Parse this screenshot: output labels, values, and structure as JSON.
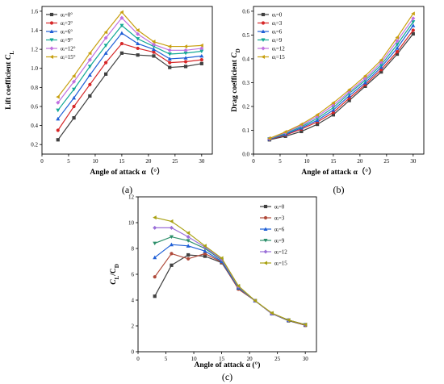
{
  "chart_data": [
    {
      "type": "line",
      "panel_label": "(a)",
      "xlabel": "Angle of attack α（°）",
      "ylabel_main": "Lift coefficient ",
      "ylabel_italic": "C",
      "ylabel_sub": "L",
      "xlim": [
        0,
        32
      ],
      "ylim": [
        0.1,
        1.65
      ],
      "xticks": [
        "0",
        "5",
        "10",
        "15",
        "20",
        "25",
        "30"
      ],
      "yticks": [
        "0.2",
        "0.4",
        "0.6",
        "0.8",
        "1.0",
        "1.2",
        "1.4",
        "1.6"
      ],
      "legend_placement": "top-left",
      "x": [
        3,
        6,
        9,
        12,
        15,
        18,
        21,
        24,
        27,
        30
      ],
      "series": [
        {
          "name": "αᵢ=0°",
          "color": "#404040",
          "marker": "square",
          "values": [
            0.25,
            0.48,
            0.71,
            0.94,
            1.16,
            1.14,
            1.13,
            1.01,
            1.02,
            1.05
          ]
        },
        {
          "name": "αᵢ=3°",
          "color": "#d62728",
          "marker": "circle",
          "values": [
            0.35,
            0.6,
            0.83,
            1.06,
            1.26,
            1.21,
            1.17,
            1.06,
            1.07,
            1.09
          ]
        },
        {
          "name": "αᵢ=6°",
          "color": "#1f5fd6",
          "marker": "triangle-up",
          "values": [
            0.47,
            0.69,
            0.93,
            1.16,
            1.37,
            1.26,
            1.2,
            1.1,
            1.11,
            1.13
          ]
        },
        {
          "name": "αᵢ=9°",
          "color": "#12a896",
          "marker": "triangle-down",
          "values": [
            0.56,
            0.78,
            1.02,
            1.24,
            1.45,
            1.31,
            1.23,
            1.15,
            1.16,
            1.18
          ]
        },
        {
          "name": "αᵢ=12°",
          "color": "#c070e0",
          "marker": "diamond",
          "values": [
            0.64,
            0.86,
            1.09,
            1.32,
            1.53,
            1.36,
            1.25,
            1.19,
            1.19,
            1.21
          ]
        },
        {
          "name": "αᵢ=15°",
          "color": "#c8a010",
          "marker": "triangle-left",
          "values": [
            0.7,
            0.92,
            1.16,
            1.38,
            1.59,
            1.4,
            1.28,
            1.23,
            1.23,
            1.24
          ]
        }
      ]
    },
    {
      "type": "line",
      "panel_label": "(b)",
      "xlabel": "Angle of attack α（°）",
      "ylabel_main": "Drag coefficient ",
      "ylabel_italic": "C",
      "ylabel_sub": "D",
      "xlim": [
        0,
        32
      ],
      "ylim": [
        0.0,
        0.62
      ],
      "xticks": [
        "0",
        "5",
        "10",
        "15",
        "20",
        "25",
        "30"
      ],
      "yticks": [
        "0.0",
        "0.1",
        "0.2",
        "0.3",
        "0.4",
        "0.5",
        "0.6"
      ],
      "legend_placement": "top-left",
      "x": [
        3,
        6,
        9,
        12,
        15,
        18,
        21,
        24,
        27,
        30
      ],
      "series": [
        {
          "name": "αᵢ=0",
          "color": "#404040",
          "marker": "square",
          "values": [
            0.06,
            0.075,
            0.095,
            0.125,
            0.165,
            0.225,
            0.285,
            0.345,
            0.42,
            0.505
          ]
        },
        {
          "name": "αᵢ=3",
          "color": "#d62728",
          "marker": "circle",
          "values": [
            0.062,
            0.08,
            0.105,
            0.135,
            0.175,
            0.235,
            0.292,
            0.355,
            0.43,
            0.52
          ]
        },
        {
          "name": "αᵢ=6",
          "color": "#1f5fd6",
          "marker": "triangle-up",
          "values": [
            0.063,
            0.083,
            0.11,
            0.142,
            0.185,
            0.245,
            0.3,
            0.365,
            0.445,
            0.54
          ]
        },
        {
          "name": "αᵢ=9",
          "color": "#12a896",
          "marker": "triangle-down",
          "values": [
            0.064,
            0.086,
            0.115,
            0.15,
            0.195,
            0.255,
            0.31,
            0.375,
            0.46,
            0.555
          ]
        },
        {
          "name": "αᵢ=12",
          "color": "#c070e0",
          "marker": "diamond",
          "values": [
            0.065,
            0.09,
            0.12,
            0.158,
            0.205,
            0.262,
            0.318,
            0.385,
            0.475,
            0.57
          ]
        },
        {
          "name": "αᵢ=15",
          "color": "#c8a010",
          "marker": "triangle-left",
          "values": [
            0.066,
            0.093,
            0.125,
            0.165,
            0.215,
            0.27,
            0.328,
            0.395,
            0.49,
            0.59
          ]
        }
      ]
    },
    {
      "type": "line",
      "panel_label": "(c)",
      "xlabel": "Angle of attack α (°)",
      "ylabel_italic": "C",
      "ylabel_sub": "L",
      "ylabel_sep": "/C",
      "ylabel_sub2": "D",
      "xlim": [
        0,
        32
      ],
      "ylim": [
        0,
        12
      ],
      "xticks": [
        "0",
        "5",
        "10",
        "15",
        "20",
        "25",
        "30"
      ],
      "yticks": [
        "0",
        "2",
        "4",
        "6",
        "8",
        "10",
        "12"
      ],
      "legend_placement": "top-right",
      "x": [
        3,
        6,
        9,
        12,
        15,
        18,
        21,
        24,
        27,
        30
      ],
      "series": [
        {
          "name": "αᵢ=0",
          "color": "#404040",
          "marker": "square",
          "values": [
            4.3,
            6.7,
            7.5,
            7.4,
            6.9,
            4.9,
            3.95,
            2.95,
            2.4,
            2.05
          ]
        },
        {
          "name": "αᵢ=3",
          "color": "#b04a3a",
          "marker": "circle",
          "values": [
            5.8,
            7.6,
            7.2,
            7.6,
            6.95,
            4.85,
            3.95,
            2.95,
            2.45,
            2.05
          ]
        },
        {
          "name": "αᵢ=6",
          "color": "#1f5fd6",
          "marker": "triangle-up",
          "values": [
            7.3,
            8.3,
            8.2,
            7.8,
            7.0,
            4.95,
            3.95,
            2.95,
            2.45,
            2.1
          ]
        },
        {
          "name": "αᵢ=9",
          "color": "#2c8f6a",
          "marker": "triangle-down",
          "values": [
            8.4,
            8.9,
            8.6,
            8.0,
            7.1,
            5.0,
            3.95,
            2.95,
            2.45,
            2.1
          ]
        },
        {
          "name": "αᵢ=12",
          "color": "#9a6fd8",
          "marker": "diamond",
          "values": [
            9.6,
            9.6,
            8.9,
            8.1,
            7.15,
            5.05,
            3.95,
            2.95,
            2.45,
            2.1
          ]
        },
        {
          "name": "αᵢ=15",
          "color": "#a8a010",
          "marker": "triangle-left",
          "values": [
            10.4,
            10.1,
            9.2,
            8.2,
            7.25,
            5.1,
            3.95,
            3.0,
            2.45,
            2.1
          ]
        }
      ]
    }
  ]
}
